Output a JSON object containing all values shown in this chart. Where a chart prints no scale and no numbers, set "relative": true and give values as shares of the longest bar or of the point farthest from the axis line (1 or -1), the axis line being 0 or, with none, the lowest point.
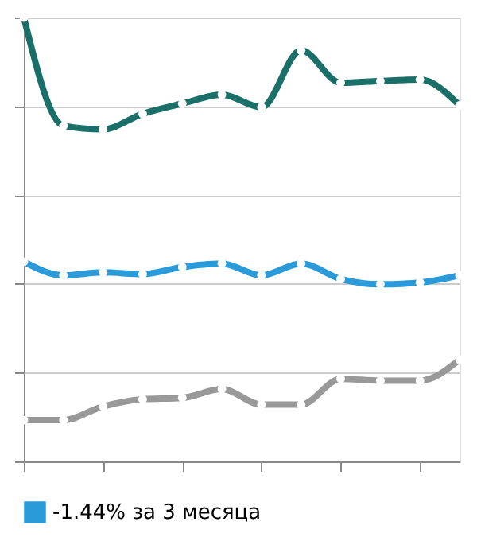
{
  "chart_data": {
    "type": "line",
    "relative": true,
    "categories": [
      null,
      null,
      null,
      null,
      null,
      null,
      null,
      null,
      null,
      null,
      null,
      null
    ],
    "series": [
      {
        "color": "#1a7068",
        "values": [
          1.0,
          0.756,
          0.748,
          0.783,
          0.806,
          0.826,
          0.798,
          0.926,
          0.853,
          0.857,
          0.86,
          0.802
        ]
      },
      {
        "name": "-1.44% за 3 месяца",
        "color": "#2a9ad8",
        "values": [
          0.45,
          0.419,
          0.426,
          0.422,
          0.438,
          0.446,
          0.419,
          0.446,
          0.411,
          0.399,
          0.403,
          0.419
        ]
      },
      {
        "color": "#999999",
        "values": [
          0.093,
          0.093,
          0.124,
          0.14,
          0.143,
          0.163,
          0.128,
          0.128,
          0.186,
          0.182,
          0.182,
          0.229
        ]
      }
    ],
    "grid": "y",
    "legend": "bottom",
    "tick_labels": false,
    "marker": "circle",
    "line_style": "solid"
  }
}
